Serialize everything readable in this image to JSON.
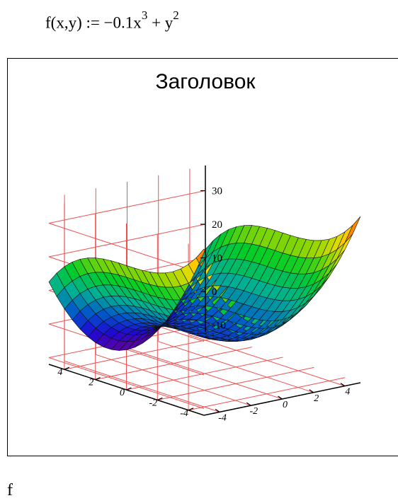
{
  "formula": {
    "prefix": "f(x,y) := −0.1x",
    "exp1": "3",
    "middle": " + y",
    "exp2": "2"
  },
  "bottom_label": "f",
  "chart_data": {
    "type": "surface3d",
    "title": "Заголовок",
    "function": "f(x,y) = -0.1x^3 + y^2",
    "x_range": [
      -5,
      5
    ],
    "y_range": [
      -5,
      5
    ],
    "x_ticks": [
      "-4",
      "-2",
      "0",
      "2",
      "4"
    ],
    "y_ticks": [
      "-4",
      "-2",
      "0",
      "2",
      "4"
    ],
    "z_ticks": [
      "-10",
      "0",
      "10",
      "20",
      "30"
    ],
    "z_range": [
      -12,
      37.5
    ],
    "grid": true,
    "colormap": "rainbow",
    "colors": {
      "grid": "#ee5050",
      "mesh": "#101010",
      "axis": "#000000"
    },
    "samples": {
      "x": [
        -5,
        -2.5,
        0,
        2.5,
        5
      ],
      "y": [
        -5,
        -2.5,
        0,
        2.5,
        5
      ],
      "z": [
        [
          37.5,
          18.75,
          12.5,
          18.75,
          37.5
        ],
        [
          26.56,
          7.81,
          1.56,
          7.81,
          26.56
        ],
        [
          25,
          6.25,
          0,
          6.25,
          25
        ],
        [
          23.44,
          4.69,
          -1.56,
          4.69,
          23.44
        ],
        [
          12.5,
          -6.25,
          -12.5,
          -6.25,
          12.5
        ]
      ]
    }
  }
}
